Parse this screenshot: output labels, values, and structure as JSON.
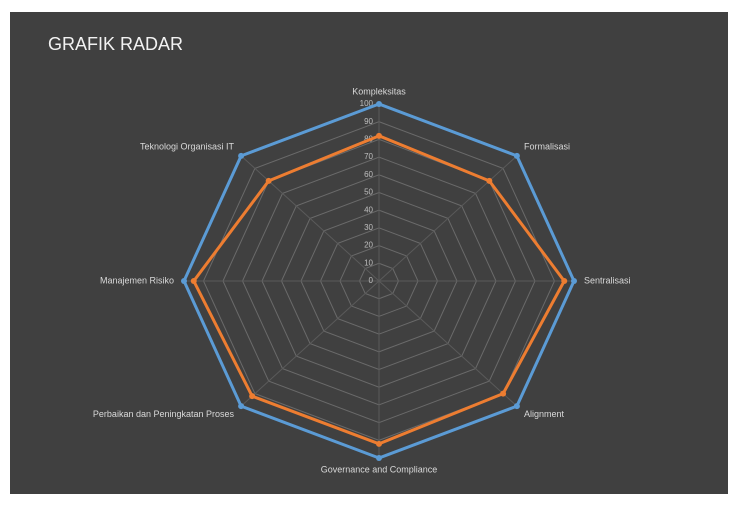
{
  "chart_data": {
    "type": "radar",
    "title": "GRAFIK RADAR",
    "categories": [
      "Kompleksitas",
      "Formalisasi",
      "Sentralisasi",
      "Alignment",
      "Governance and Compliance",
      "Perbaikan dan Peningkatan Proses",
      "Manajemen Risiko",
      "Teknologi Organisasi IT"
    ],
    "series": [
      {
        "color": "#5b9bd5",
        "values": [
          100,
          100,
          100,
          100,
          100,
          100,
          100,
          100
        ]
      },
      {
        "color": "#ed7d31",
        "values": [
          82,
          80,
          95,
          90,
          92,
          92,
          95,
          80
        ]
      }
    ],
    "ylim": [
      0,
      100
    ],
    "yticks": [
      0,
      10,
      20,
      30,
      40,
      50,
      60,
      70,
      80,
      90,
      100
    ],
    "grid": true
  }
}
